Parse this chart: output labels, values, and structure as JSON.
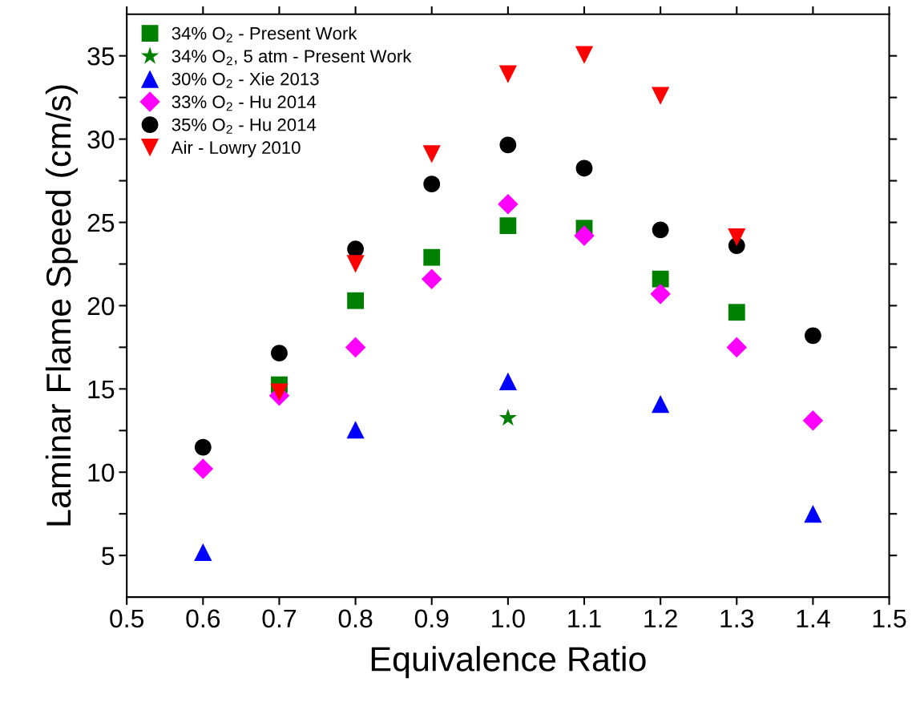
{
  "chart_data": {
    "type": "scatter",
    "xlabel": "Equivalence Ratio",
    "ylabel": "Laminar Flame Speed (cm/s)",
    "xlim": [
      0.5,
      1.5
    ],
    "ylim": [
      2.5,
      37.5
    ],
    "xticks": [
      {
        "value": 0.5,
        "label": "0.5"
      },
      {
        "value": 0.6,
        "label": "0.6"
      },
      {
        "value": 0.7,
        "label": "0.7"
      },
      {
        "value": 0.8,
        "label": "0.8"
      },
      {
        "value": 0.9,
        "label": "0.9"
      },
      {
        "value": 1.0,
        "label": "1.0"
      },
      {
        "value": 1.1,
        "label": "1.1"
      },
      {
        "value": 1.2,
        "label": "1.2"
      },
      {
        "value": 1.3,
        "label": "1.3"
      },
      {
        "value": 1.4,
        "label": "1.4"
      },
      {
        "value": 1.5,
        "label": "1.5"
      }
    ],
    "yticks": [
      5,
      {
        "value": 7.5,
        "label": null
      },
      10,
      {
        "value": 12.5,
        "label": null
      },
      15,
      {
        "value": 17.5,
        "label": null
      },
      20,
      {
        "value": 22.5,
        "label": null
      },
      25,
      {
        "value": 27.5,
        "label": null
      },
      30,
      {
        "value": 32.5,
        "label": null
      },
      35
    ],
    "grid": false,
    "legend": "top left",
    "series": [
      {
        "name": "34% O$_{2}$ - Present Work",
        "color": "#008000",
        "marker": "square",
        "x": [
          0.7,
          0.8,
          0.9,
          1.0,
          1.1,
          1.2,
          1.3
        ],
        "values": [
          15.25,
          20.3,
          22.9,
          24.8,
          24.65,
          21.6,
          19.6
        ]
      },
      {
        "name": "34% O$_{2}$, 5 atm - Present Work",
        "color": "#008000",
        "marker": "star",
        "x": [
          1.0
        ],
        "values": [
          13.25
        ]
      },
      {
        "name": "30% O$_{2}$ - Xie 2013",
        "color": "#0000ff",
        "marker": "triangle",
        "x": [
          0.6,
          0.8,
          1.0,
          1.2,
          1.4
        ],
        "values": [
          5.2,
          12.55,
          15.45,
          14.1,
          7.5
        ]
      },
      {
        "name": "33% O$_{2}$ - Hu 2014",
        "color": "#ff00ff",
        "marker": "diamond",
        "x": [
          0.6,
          0.7,
          0.8,
          0.9,
          1.0,
          1.1,
          1.2,
          1.3,
          1.4
        ],
        "values": [
          10.2,
          14.6,
          17.5,
          21.6,
          26.1,
          24.2,
          20.7,
          17.5,
          13.1
        ]
      },
      {
        "name": "35% O$_{2}$ - Hu 2014",
        "color": "#000000",
        "marker": "circle",
        "x": [
          0.6,
          0.7,
          0.8,
          0.9,
          1.0,
          1.1,
          1.2,
          1.3,
          1.4
        ],
        "values": [
          11.5,
          17.15,
          23.4,
          27.3,
          29.65,
          28.25,
          24.55,
          23.6,
          18.2
        ]
      },
      {
        "name": "Air - Lowry 2010",
        "color": "#ff0000",
        "marker": "triangle_down",
        "x": [
          0.7,
          0.8,
          0.9,
          1.0,
          1.1,
          1.2,
          1.3
        ],
        "values": [
          14.8,
          22.5,
          29.1,
          33.9,
          35.05,
          32.6,
          24.1
        ]
      }
    ]
  }
}
